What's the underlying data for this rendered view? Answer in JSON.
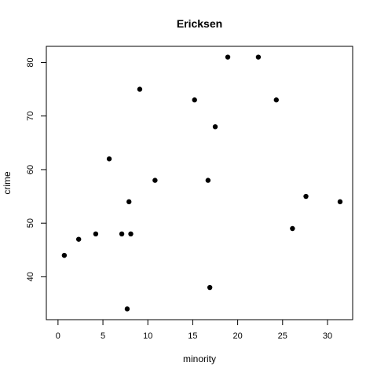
{
  "chart_data": {
    "type": "scatter",
    "title": "Ericksen",
    "xlabel": "minority",
    "ylabel": "crime",
    "xlim": [
      -1.3,
      32.8
    ],
    "ylim": [
      32.0,
      83.0
    ],
    "xticks": [
      0,
      5,
      10,
      15,
      20,
      25,
      30
    ],
    "yticks": [
      40,
      50,
      60,
      70,
      80
    ],
    "grid": false,
    "points": [
      {
        "x": 0.7,
        "y": 44
      },
      {
        "x": 2.3,
        "y": 47
      },
      {
        "x": 4.2,
        "y": 48
      },
      {
        "x": 5.7,
        "y": 62
      },
      {
        "x": 7.1,
        "y": 48
      },
      {
        "x": 7.7,
        "y": 34
      },
      {
        "x": 7.9,
        "y": 54
      },
      {
        "x": 8.1,
        "y": 48
      },
      {
        "x": 9.1,
        "y": 75
      },
      {
        "x": 10.8,
        "y": 58
      },
      {
        "x": 15.2,
        "y": 73
      },
      {
        "x": 16.7,
        "y": 58
      },
      {
        "x": 16.9,
        "y": 38
      },
      {
        "x": 17.5,
        "y": 68
      },
      {
        "x": 18.9,
        "y": 81
      },
      {
        "x": 22.3,
        "y": 81
      },
      {
        "x": 24.3,
        "y": 73
      },
      {
        "x": 26.1,
        "y": 49
      },
      {
        "x": 27.6,
        "y": 55
      },
      {
        "x": 31.4,
        "y": 54
      }
    ],
    "marker_color": "#000000"
  }
}
